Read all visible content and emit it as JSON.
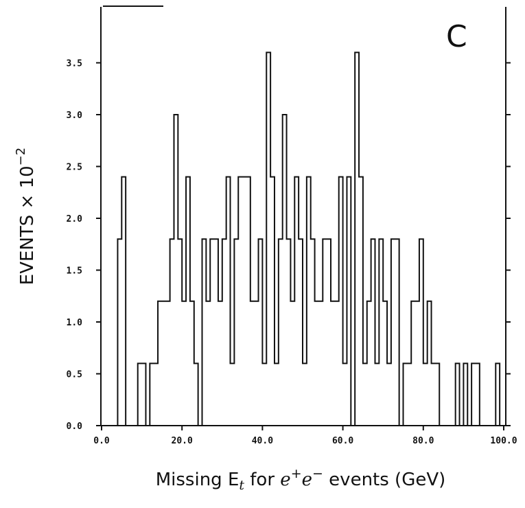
{
  "chart_data": {
    "type": "bar",
    "style": "step-histogram",
    "panel_label": "C",
    "xlabel": {
      "prefix": "Missing E",
      "subscript": "t",
      "middle": " for ",
      "particle_e1": "e",
      "sup1": "+",
      "particle_e2": "e",
      "sup2": "−",
      "suffix": " events (GeV)"
    },
    "ylabel": {
      "main": "EVENTS × 10",
      "exponent": "−2"
    },
    "xlim": [
      0,
      100
    ],
    "ylim": [
      0,
      4
    ],
    "x_ticks": [
      "0.0",
      "20.0",
      "40.0",
      "60.0",
      "80.0",
      "100.0"
    ],
    "y_ticks": [
      "0.0",
      "0.5",
      "1.0",
      "1.5",
      "2.0",
      "2.5",
      "3.0",
      "3.5"
    ],
    "grid": false,
    "bin_width": 1,
    "bin_starts": [
      0,
      1,
      2,
      3,
      4,
      5,
      6,
      7,
      8,
      9,
      10,
      11,
      12,
      13,
      14,
      15,
      16,
      17,
      18,
      19,
      20,
      21,
      22,
      23,
      24,
      25,
      26,
      27,
      28,
      29,
      30,
      31,
      32,
      33,
      34,
      35,
      36,
      37,
      38,
      39,
      40,
      41,
      42,
      43,
      44,
      45,
      46,
      47,
      48,
      49,
      50,
      51,
      52,
      53,
      54,
      55,
      56,
      57,
      58,
      59,
      60,
      61,
      62,
      63,
      64,
      65,
      66,
      67,
      68,
      69,
      70,
      71,
      72,
      73,
      74,
      75,
      76,
      77,
      78,
      79,
      80,
      81,
      82,
      83,
      84,
      85,
      86,
      87,
      88,
      89,
      90,
      91,
      92,
      93,
      94,
      95,
      96,
      97,
      98,
      99
    ],
    "values": [
      0,
      0,
      0,
      0,
      1.8,
      2.4,
      0,
      0,
      0,
      0.6,
      0.6,
      0,
      0.6,
      0.6,
      1.2,
      1.2,
      1.2,
      1.8,
      3.0,
      1.8,
      1.2,
      2.4,
      1.2,
      0.6,
      0,
      1.8,
      1.2,
      1.8,
      1.8,
      1.2,
      1.8,
      2.4,
      0.6,
      1.8,
      2.4,
      2.4,
      2.4,
      1.2,
      1.2,
      1.8,
      0.6,
      3.6,
      2.4,
      0.6,
      1.8,
      3.0,
      1.8,
      1.2,
      2.4,
      1.8,
      0.6,
      2.4,
      1.8,
      1.2,
      1.2,
      1.8,
      1.8,
      1.2,
      1.2,
      2.4,
      0.6,
      2.4,
      0,
      3.6,
      2.4,
      0.6,
      1.2,
      1.8,
      0.6,
      1.8,
      1.2,
      0.6,
      1.8,
      1.8,
      0,
      0.6,
      0.6,
      1.2,
      1.2,
      1.8,
      0.6,
      1.2,
      0.6,
      0.6,
      0,
      0,
      0,
      0,
      0.6,
      0,
      0.6,
      0,
      0.6,
      0.6,
      0,
      0,
      0,
      0,
      0.6,
      0
    ]
  }
}
